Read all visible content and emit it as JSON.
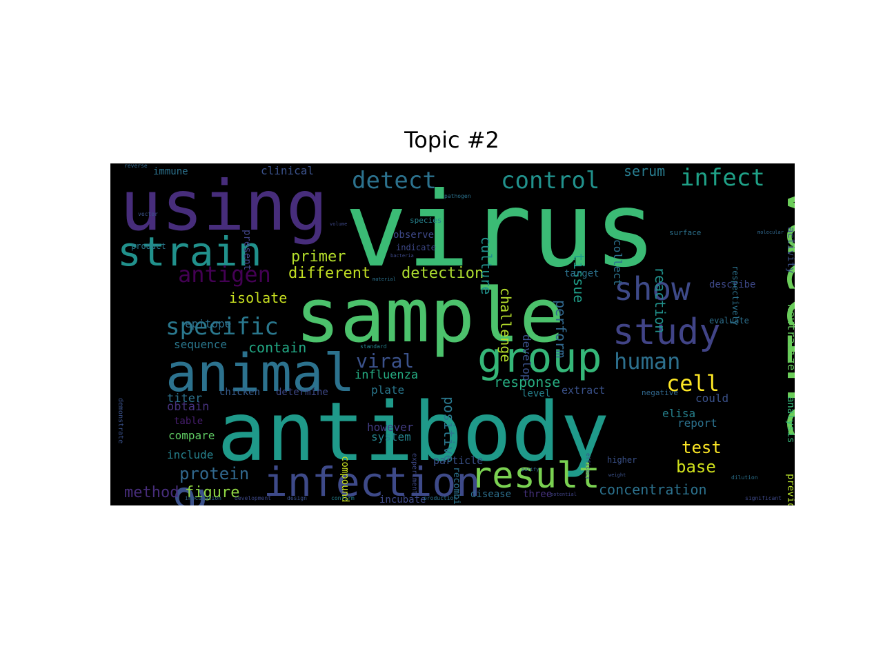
{
  "chart_data": {
    "type": "wordcloud",
    "title": "Topic #2",
    "background": "#000000",
    "palette": {
      "purple_dark": "#440154",
      "purple": "#482878",
      "indigo": "#3e4989",
      "blue": "#31688e",
      "teal_blue": "#26828e",
      "teal": "#1f9e89",
      "green": "#35b779",
      "green_light": "#6ece58",
      "lime": "#b5de2b",
      "yellow": "#fde725"
    },
    "words": [
      {
        "text": "virus",
        "weight": 100,
        "color": "#3bbb75"
      },
      {
        "text": "sample",
        "weight": 96,
        "color": "#4cc26c"
      },
      {
        "text": "antibody",
        "weight": 95,
        "color": "#1f9a8a"
      },
      {
        "text": "vaccine",
        "weight": 72,
        "color": "#6ccd5a"
      },
      {
        "text": "using",
        "weight": 66,
        "color": "#472d7b"
      },
      {
        "text": "assay",
        "weight": 64,
        "color": "#3b518b"
      },
      {
        "text": "animal",
        "weight": 52,
        "color": "#2c728e"
      },
      {
        "text": "infection",
        "weight": 42,
        "color": "#3e4a89"
      },
      {
        "text": "group",
        "weight": 42,
        "color": "#35b779"
      },
      {
        "text": "strain",
        "weight": 40,
        "color": "#21918c"
      },
      {
        "text": "result",
        "weight": 38,
        "color": "#7ad151"
      },
      {
        "text": "study",
        "weight": 35,
        "color": "#414487"
      },
      {
        "text": "show",
        "weight": 31,
        "color": "#3e4a89"
      },
      {
        "text": "specific",
        "weight": 26,
        "color": "#2a788e"
      },
      {
        "text": "antigen",
        "weight": 25,
        "color": "#440154"
      },
      {
        "text": "detect",
        "weight": 25,
        "color": "#2c728e"
      },
      {
        "text": "control",
        "weight": 25,
        "color": "#21918c"
      },
      {
        "text": "infect",
        "weight": 25,
        "color": "#1fa187"
      },
      {
        "text": "human",
        "weight": 23,
        "color": "#2d708e"
      },
      {
        "text": "cell",
        "weight": 22,
        "color": "#fde725"
      },
      {
        "text": "viral",
        "weight": 22,
        "color": "#3b528b"
      },
      {
        "text": "primer",
        "weight": 19,
        "color": "#b5de2b"
      },
      {
        "text": "detection",
        "weight": 19,
        "color": "#addc30"
      },
      {
        "text": "different",
        "weight": 18,
        "color": "#c2df23"
      },
      {
        "text": "serum",
        "weight": 16,
        "color": "#287c8e"
      },
      {
        "text": "clinical",
        "weight": 13,
        "color": "#3b528b"
      },
      {
        "text": "isolate",
        "weight": 16,
        "color": "#c8e020"
      },
      {
        "text": "contain",
        "weight": 16,
        "color": "#22a884"
      },
      {
        "text": "epitope",
        "weight": 13,
        "color": "#2d708e"
      },
      {
        "text": "sequence",
        "weight": 13,
        "color": "#2a788e"
      },
      {
        "text": "protein",
        "weight": 17,
        "color": "#31688e"
      },
      {
        "text": "figure",
        "weight": 17,
        "color": "#90d743"
      },
      {
        "text": "method",
        "weight": 17,
        "color": "#472d7b"
      },
      {
        "text": "concentration",
        "weight": 16,
        "color": "#2c728e"
      },
      {
        "text": "test",
        "weight": 17,
        "color": "#fde725"
      },
      {
        "text": "base",
        "weight": 17,
        "color": "#d0e11c"
      },
      {
        "text": "reaction",
        "weight": 15,
        "color": "#21918c"
      },
      {
        "text": "tissue",
        "weight": 15,
        "color": "#1f9e89"
      },
      {
        "text": "culture",
        "weight": 15,
        "color": "#21918c"
      },
      {
        "text": "challenge",
        "weight": 15,
        "color": "#b5de2b"
      },
      {
        "text": "perform",
        "weight": 15,
        "color": "#31688e"
      },
      {
        "text": "positive",
        "weight": 15,
        "color": "#2a788e"
      },
      {
        "text": "response",
        "weight": 15,
        "color": "#27ad81"
      },
      {
        "text": "influenza",
        "weight": 13,
        "color": "#25ac82"
      },
      {
        "text": "titer",
        "weight": 13,
        "color": "#2c728e"
      },
      {
        "text": "obtain",
        "weight": 13,
        "color": "#46327e"
      },
      {
        "text": "compare",
        "weight": 13,
        "color": "#5ec962"
      },
      {
        "text": "include",
        "weight": 13,
        "color": "#26828e"
      },
      {
        "text": "table",
        "weight": 12,
        "color": "#481f70"
      },
      {
        "text": "chicken",
        "weight": 12,
        "color": "#365c8d"
      },
      {
        "text": "determine",
        "weight": 12,
        "color": "#3e4989"
      },
      {
        "text": "plate",
        "weight": 13,
        "color": "#2a788e"
      },
      {
        "text": "however",
        "weight": 13,
        "color": "#433e85"
      },
      {
        "text": "system",
        "weight": 13,
        "color": "#25848e"
      },
      {
        "text": "particle",
        "weight": 12,
        "color": "#3b528b"
      },
      {
        "text": "incubate",
        "weight": 12,
        "color": "#3e4989"
      },
      {
        "text": "disease",
        "weight": 12,
        "color": "#2d708e"
      },
      {
        "text": "three",
        "weight": 12,
        "color": "#46327e"
      },
      {
        "text": "level",
        "weight": 12,
        "color": "#26828e"
      },
      {
        "text": "extract",
        "weight": 12,
        "color": "#3b528b"
      },
      {
        "text": "elisa",
        "weight": 13,
        "color": "#26828e"
      },
      {
        "text": "could",
        "weight": 13,
        "color": "#3b528b"
      },
      {
        "text": "report",
        "weight": 12,
        "color": "#2c728e"
      },
      {
        "text": "describe",
        "weight": 12,
        "color": "#3e4989"
      },
      {
        "text": "target",
        "weight": 12,
        "color": "#2c728e"
      },
      {
        "text": "develop",
        "weight": 12,
        "color": "#3b528b"
      },
      {
        "text": "collect",
        "weight": 12,
        "color": "#2c728e"
      },
      {
        "text": "neutralize",
        "weight": 12,
        "color": "#65cb5e"
      },
      {
        "text": "respectively",
        "weight": 11,
        "color": "#2c728e"
      },
      {
        "text": "analysis",
        "weight": 11,
        "color": "#35b779"
      },
      {
        "text": "previously",
        "weight": 11,
        "color": "#b5de2b"
      },
      {
        "text": "activity",
        "weight": 11,
        "color": "#3b528b"
      },
      {
        "text": "evaluate",
        "weight": 9,
        "color": "#2d708e"
      },
      {
        "text": "compound",
        "weight": 11,
        "color": "#c8e020"
      },
      {
        "text": "recombinant",
        "weight": 11,
        "color": "#2c728e"
      },
      {
        "text": "observe",
        "weight": 11,
        "color": "#3e4989"
      },
      {
        "text": "present",
        "weight": 11,
        "color": "#414487"
      },
      {
        "text": "immune",
        "weight": 11,
        "color": "#2c728e"
      },
      {
        "text": "demonstrate",
        "weight": 9,
        "color": "#3b528b"
      },
      {
        "text": "product",
        "weight": 9,
        "color": "#2a788e"
      },
      {
        "text": "indicate",
        "weight": 8,
        "color": "#3e4989"
      },
      {
        "text": "species",
        "weight": 8,
        "color": "#26828e"
      },
      {
        "text": "surface",
        "weight": 8,
        "color": "#2c728e"
      },
      {
        "text": "negative",
        "weight": 8,
        "color": "#31688e"
      },
      {
        "text": "higher",
        "weight": 8,
        "color": "#3b528b"
      },
      {
        "text": "experiment",
        "weight": 8,
        "color": "#3e4989"
      },
      {
        "text": "vector",
        "weight": 6,
        "color": "#3b528b"
      },
      {
        "text": "pathogen",
        "weight": 6,
        "color": "#2c728e"
      },
      {
        "text": "reverse",
        "weight": 6,
        "color": "#31688e"
      },
      {
        "text": "volume",
        "weight": 6,
        "color": "#3e4989"
      },
      {
        "text": "standard",
        "weight": 6,
        "color": "#26828e"
      },
      {
        "text": "efficacy",
        "weight": 6,
        "color": "#3b528b"
      },
      {
        "text": "dilution",
        "weight": 6,
        "color": "#2c728e"
      },
      {
        "text": "significant",
        "weight": 6,
        "color": "#3e4989"
      },
      {
        "text": "molecular",
        "weight": 6,
        "color": "#31688e"
      },
      {
        "text": "design",
        "weight": 6,
        "color": "#3b528b"
      },
      {
        "text": "development",
        "weight": 6,
        "color": "#3e4989"
      },
      {
        "text": "production",
        "weight": 6,
        "color": "#2c728e"
      },
      {
        "text": "potential",
        "weight": 6,
        "color": "#414487"
      },
      {
        "text": "confirm",
        "weight": 6,
        "color": "#26828e"
      },
      {
        "text": "inoculation",
        "weight": 6,
        "color": "#31688e"
      },
      {
        "text": "bacteria",
        "weight": 6,
        "color": "#3e4989"
      },
      {
        "text": "material",
        "weight": 6,
        "color": "#2c728e"
      },
      {
        "text": "weight",
        "weight": 6,
        "color": "#3b528b"
      },
      {
        "text": "purify",
        "weight": 6,
        "color": "#31688e"
      }
    ]
  }
}
